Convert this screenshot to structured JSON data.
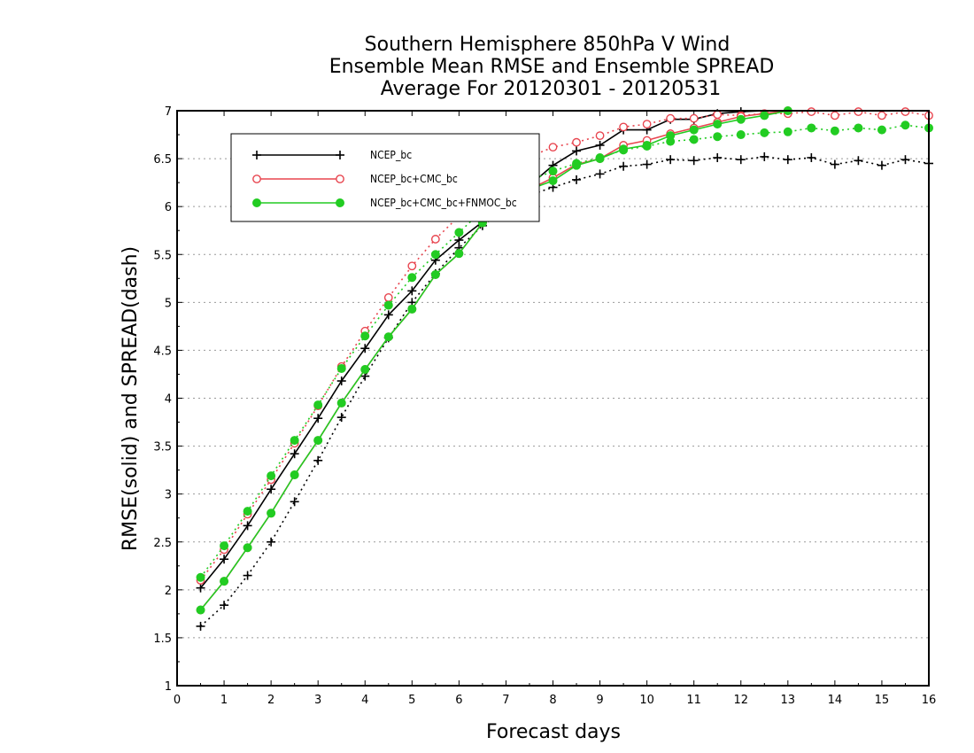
{
  "chart_data": {
    "type": "line",
    "title": [
      "Southern Hemisphere 850hPa V Wind",
      "Ensemble Mean RMSE and Ensemble SPREAD",
      "Average For 20120301 - 20120531"
    ],
    "xlabel": "Forecast days",
    "ylabel": "RMSE(solid) and SPREAD(dash)",
    "xlim": [
      0,
      16
    ],
    "ylim": [
      1,
      7
    ],
    "xticks": [
      "0",
      "1",
      "2",
      "3",
      "4",
      "5",
      "6",
      "7",
      "8",
      "9",
      "10",
      "11",
      "12",
      "13",
      "14",
      "15",
      "16"
    ],
    "yticks": [
      "1",
      "1.5",
      "2",
      "2.5",
      "3",
      "3.5",
      "4",
      "4.5",
      "5",
      "5.5",
      "6",
      "6.5",
      "7"
    ],
    "grid": true,
    "legend_position": "top-left",
    "x": [
      0.5,
      1,
      1.5,
      2,
      2.5,
      3,
      3.5,
      4,
      4.5,
      5,
      5.5,
      6,
      6.5,
      7,
      7.5,
      8,
      8.5,
      9,
      9.5,
      10,
      10.5,
      11,
      11.5,
      12,
      12.5,
      13,
      13.5,
      14,
      14.5,
      15,
      15.5,
      16
    ],
    "series": [
      {
        "name": "NCEP_bc",
        "color": "#000000",
        "marker": "plus",
        "rmse": [
          2.02,
          2.32,
          2.67,
          3.05,
          3.42,
          3.79,
          4.18,
          4.52,
          4.87,
          5.12,
          5.44,
          5.65,
          5.84,
          6.0,
          6.22,
          6.43,
          6.58,
          6.64,
          6.8,
          6.8,
          6.91,
          6.91,
          6.97,
          6.99,
          7.02,
          7.02,
          7.04,
          7.03,
          7.04,
          7.06,
          7.06,
          7.06
        ],
        "spread": [
          1.62,
          1.84,
          2.15,
          2.5,
          2.92,
          3.35,
          3.8,
          4.23,
          4.63,
          5.0,
          5.3,
          5.57,
          5.8,
          5.97,
          6.12,
          6.2,
          6.28,
          6.34,
          6.42,
          6.44,
          6.49,
          6.48,
          6.51,
          6.49,
          6.52,
          6.49,
          6.51,
          6.44,
          6.48,
          6.43,
          6.49,
          6.45
        ]
      },
      {
        "name": "NCEP_bc+CMC_bc",
        "color": "#e8454f",
        "marker": "open-circle",
        "rmse": [
          1.79,
          2.09,
          2.44,
          2.8,
          3.2,
          3.56,
          3.95,
          4.3,
          4.64,
          4.93,
          5.29,
          5.51,
          5.83,
          6.04,
          6.18,
          6.3,
          6.44,
          6.5,
          6.64,
          6.69,
          6.76,
          6.82,
          6.88,
          6.94,
          6.97,
          7.0,
          7.02,
          7.02,
          7.03,
          7.03,
          7.03,
          7.03
        ],
        "spread": [
          2.1,
          2.42,
          2.79,
          3.15,
          3.53,
          3.92,
          4.33,
          4.7,
          5.05,
          5.38,
          5.66,
          5.9,
          6.14,
          6.37,
          6.52,
          6.62,
          6.67,
          6.74,
          6.83,
          6.86,
          6.92,
          6.92,
          6.96,
          6.95,
          6.97,
          6.97,
          6.99,
          6.95,
          6.99,
          6.95,
          6.99,
          6.95
        ]
      },
      {
        "name": "NCEP_bc+CMC_bc+FNMOC_bc",
        "color": "#22cc22",
        "marker": "filled-circle",
        "rmse": [
          1.79,
          2.09,
          2.44,
          2.8,
          3.2,
          3.56,
          3.95,
          4.3,
          4.64,
          4.93,
          5.29,
          5.51,
          5.83,
          6.04,
          6.18,
          6.27,
          6.43,
          6.5,
          6.6,
          6.64,
          6.74,
          6.8,
          6.86,
          6.91,
          6.95,
          7.0,
          7.02,
          7.03,
          7.03,
          7.03,
          7.03,
          7.03
        ],
        "spread": [
          2.13,
          2.46,
          2.82,
          3.19,
          3.56,
          3.93,
          4.31,
          4.65,
          4.97,
          5.26,
          5.5,
          5.73,
          5.96,
          6.13,
          6.27,
          6.37,
          6.45,
          6.51,
          6.59,
          6.63,
          6.68,
          6.7,
          6.73,
          6.75,
          6.77,
          6.78,
          6.82,
          6.79,
          6.82,
          6.8,
          6.85,
          6.82
        ]
      }
    ]
  }
}
